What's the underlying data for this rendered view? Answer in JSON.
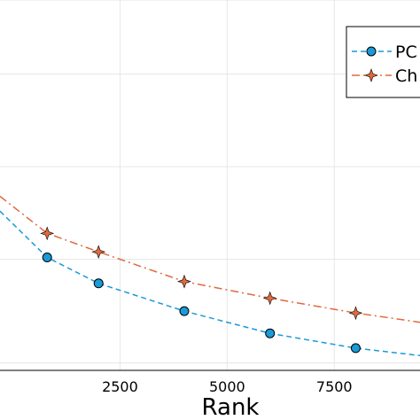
{
  "chart_data": {
    "type": "line",
    "title": "",
    "xlabel": "Rank",
    "ylabel": "",
    "xlim": [
      -300,
      9500
    ],
    "ylim": [
      0,
      1
    ],
    "x_ticks": [
      2500,
      5000,
      7500
    ],
    "x_tick_labels": [
      "2500",
      "5000",
      "7500"
    ],
    "grid": true,
    "legend_position": "top-right",
    "series": [
      {
        "name": "PC",
        "color": "#1a9ad6",
        "line_style": "dashed",
        "marker": "circle",
        "x": [
          -300,
          800,
          2000,
          4000,
          6000,
          8000,
          9500
        ],
        "y": [
          0.43,
          0.305,
          0.235,
          0.16,
          0.1,
          0.06,
          0.04
        ]
      },
      {
        "name": "Ch",
        "color": "#e06a3f",
        "line_style": "dashdot",
        "marker": "star",
        "x": [
          -300,
          800,
          2000,
          4000,
          6000,
          8000,
          9500
        ],
        "y": [
          0.47,
          0.37,
          0.32,
          0.24,
          0.195,
          0.155,
          0.13
        ]
      }
    ]
  }
}
